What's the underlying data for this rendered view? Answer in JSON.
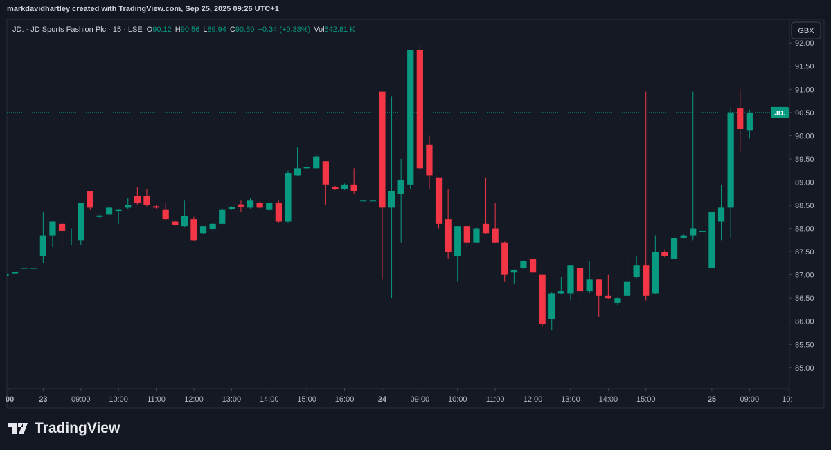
{
  "header": {
    "credit": "markdavidhartley created with TradingView.com, Sep 25, 2025 09:26 UTC+1"
  },
  "currency_button": "GBX",
  "brand": "TradingView",
  "chart_data": {
    "type": "candlestick",
    "title": "JD. · JD Sports Fashion Plc · 15 · LSE",
    "legend_fields": [
      {
        "key": "O",
        "value": "90.12"
      },
      {
        "key": "H",
        "value": "90.56"
      },
      {
        "key": "L",
        "value": "89.94"
      },
      {
        "key": "C",
        "value": "90.50"
      }
    ],
    "change": "+0.34 (+0.38%)",
    "volume": {
      "key": "Vol",
      "value": "542.81 K"
    },
    "up_color": "#089981",
    "down_color": "#f23645",
    "open": [
      86.98,
      87.03,
      87.15,
      87.15,
      87.4,
      87.85,
      88.1,
      87.8,
      87.75,
      88.8,
      88.25,
      88.3,
      88.38,
      88.45,
      88.7,
      88.7,
      88.48,
      88.4,
      88.15,
      88.05,
      88.2,
      87.9,
      87.98,
      88.1,
      88.42,
      88.52,
      88.45,
      88.55,
      88.4,
      88.55,
      88.15,
      89.15,
      89.3,
      89.3,
      89.45,
      88.9,
      88.85,
      88.95,
      88.6,
      88.6,
      90.95,
      88.45,
      88.75,
      88.95,
      91.85,
      89.8,
      89.1,
      88.2,
      87.4,
      88.05,
      87.7,
      88.1,
      88.0,
      87.7,
      87.05,
      87.15,
      87.35,
      87.0,
      86.05,
      86.6,
      86.6,
      87.15,
      86.65,
      86.9,
      86.55,
      86.4,
      86.55,
      86.95,
      87.2,
      86.6,
      87.5,
      87.35,
      87.8,
      87.85,
      87.95,
      87.15,
      88.15,
      88.45,
      90.6,
      90.12
    ],
    "high": [
      87.02,
      87.07,
      87.15,
      87.15,
      88.35,
      88.15,
      88.1,
      88.0,
      88.55,
      88.8,
      88.3,
      88.5,
      88.42,
      88.65,
      88.9,
      88.85,
      88.5,
      88.55,
      88.18,
      88.6,
      88.25,
      88.05,
      88.12,
      88.45,
      88.48,
      88.6,
      88.65,
      88.58,
      88.55,
      88.6,
      89.25,
      89.75,
      89.35,
      89.6,
      89.45,
      88.92,
      88.97,
      89.3,
      88.6,
      88.6,
      90.95,
      90.85,
      89.5,
      91.85,
      91.95,
      90.0,
      89.1,
      88.85,
      88.05,
      88.07,
      88.02,
      89.1,
      88.55,
      87.72,
      87.12,
      87.32,
      88.05,
      87.0,
      86.62,
      86.95,
      87.22,
      87.15,
      87.3,
      86.92,
      87.0,
      86.52,
      87.45,
      87.4,
      90.95,
      87.85,
      87.55,
      87.82,
      87.88,
      90.95,
      87.95,
      88.35,
      88.95,
      90.6,
      91.0,
      90.56
    ],
    "low": [
      86.96,
      87.01,
      87.15,
      87.15,
      87.25,
      87.6,
      87.55,
      87.65,
      87.65,
      88.4,
      88.22,
      88.25,
      88.1,
      88.42,
      88.52,
      88.48,
      88.43,
      88.18,
      88.05,
      88.02,
      87.73,
      87.88,
      87.96,
      88.08,
      88.4,
      88.35,
      88.43,
      88.43,
      88.38,
      88.13,
      88.13,
      89.13,
      89.28,
      89.28,
      88.5,
      88.83,
      88.83,
      88.75,
      88.6,
      88.6,
      86.9,
      86.5,
      87.7,
      88.85,
      89.25,
      88.85,
      88.0,
      87.35,
      86.85,
      87.6,
      87.68,
      87.88,
      87.68,
      86.85,
      86.8,
      87.13,
      87.03,
      85.9,
      85.8,
      86.58,
      86.45,
      86.4,
      86.6,
      86.1,
      86.48,
      86.35,
      86.53,
      86.93,
      86.45,
      86.58,
      87.38,
      87.33,
      87.78,
      87.75,
      87.95,
      87.15,
      87.75,
      87.8,
      89.65,
      89.94
    ],
    "close": [
      87.02,
      87.07,
      87.15,
      87.15,
      87.85,
      88.15,
      87.95,
      87.8,
      88.55,
      88.45,
      88.28,
      88.45,
      88.4,
      88.5,
      88.55,
      88.5,
      88.45,
      88.2,
      88.07,
      88.27,
      87.75,
      88.05,
      88.1,
      88.4,
      88.47,
      88.47,
      88.6,
      88.45,
      88.55,
      88.15,
      89.2,
      89.3,
      89.32,
      89.55,
      88.95,
      88.85,
      88.95,
      88.8,
      88.6,
      88.6,
      88.45,
      88.8,
      89.05,
      91.85,
      89.3,
      89.15,
      88.1,
      87.5,
      88.05,
      87.7,
      88.0,
      87.9,
      87.7,
      87.0,
      87.1,
      87.3,
      87.05,
      85.95,
      86.6,
      86.65,
      87.2,
      86.65,
      86.9,
      86.55,
      86.5,
      86.5,
      86.85,
      87.2,
      86.55,
      87.5,
      87.4,
      87.8,
      87.85,
      88.0,
      87.95,
      88.35,
      88.45,
      90.5,
      90.15,
      90.5
    ],
    "xlim": [
      0.15,
      83.24
    ],
    "xticks": [
      {
        "value": 0.45,
        "label": "00"
      },
      {
        "value": 4,
        "label": "23"
      },
      {
        "value": 8,
        "label": "09:00"
      },
      {
        "value": 12,
        "label": "10:00"
      },
      {
        "value": 16,
        "label": "11:00"
      },
      {
        "value": 20,
        "label": "12:00"
      },
      {
        "value": 24,
        "label": "13:00"
      },
      {
        "value": 28,
        "label": "14:00"
      },
      {
        "value": 32,
        "label": "15:00"
      },
      {
        "value": 36,
        "label": "16:00"
      },
      {
        "value": 40,
        "label": "24"
      },
      {
        "value": 44,
        "label": "09:00"
      },
      {
        "value": 48,
        "label": "10:00"
      },
      {
        "value": 52,
        "label": "11:00"
      },
      {
        "value": 56,
        "label": "12:00"
      },
      {
        "value": 60,
        "label": "13:00"
      },
      {
        "value": 64,
        "label": "14:00"
      },
      {
        "value": 68,
        "label": "15:00"
      },
      {
        "value": 75,
        "label": "25"
      },
      {
        "value": 79,
        "label": "09:00"
      },
      {
        "value": 83,
        "label": "10:"
      }
    ],
    "ylim": [
      84.55,
      92.48
    ],
    "yticks": [
      {
        "value": 85,
        "label": "85.00"
      },
      {
        "value": 85.5,
        "label": "85.50"
      },
      {
        "value": 86,
        "label": "86.00"
      },
      {
        "value": 86.5,
        "label": "86.50"
      },
      {
        "value": 87,
        "label": "87.00"
      },
      {
        "value": 87.5,
        "label": "87.50"
      },
      {
        "value": 88,
        "label": "88.00"
      },
      {
        "value": 88.5,
        "label": "88.50"
      },
      {
        "value": 89,
        "label": "89.00"
      },
      {
        "value": 89.5,
        "label": "89.50"
      },
      {
        "value": 90,
        "label": "90.00"
      },
      {
        "value": 90.5,
        "label": "90.50"
      },
      {
        "value": 91,
        "label": "91.00"
      },
      {
        "value": 91.5,
        "label": "91.50"
      },
      {
        "value": 92,
        "label": "92.00"
      }
    ],
    "last_price": 90.5,
    "last_price_label": "JD.",
    "grid": false
  }
}
